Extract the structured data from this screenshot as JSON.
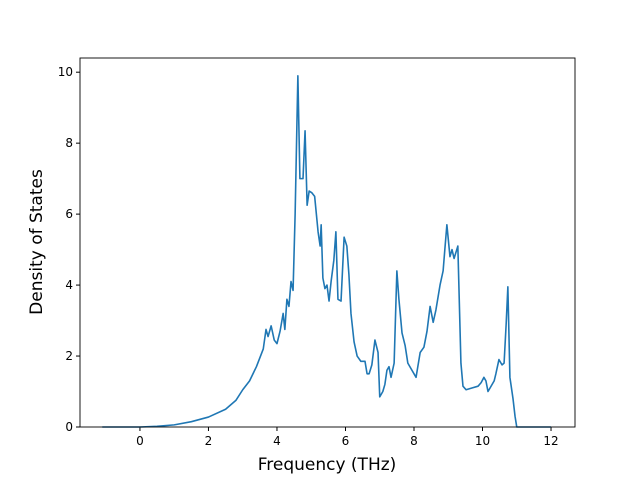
{
  "chart_data": {
    "type": "line",
    "x_label": "Frequency (THz)",
    "y_label": "Density of States",
    "xlim": [
      -1.75,
      12.7
    ],
    "ylim": [
      0,
      10.4
    ],
    "xticks": [
      0,
      2,
      4,
      6,
      8,
      10,
      12
    ],
    "yticks": [
      0,
      2,
      4,
      6,
      8,
      10
    ],
    "grid": false,
    "x": [
      -1.1,
      0,
      0.5,
      1,
      1.5,
      2,
      2.5,
      2.8,
      3.0,
      3.2,
      3.4,
      3.6,
      3.68,
      3.74,
      3.83,
      3.92,
      4.0,
      4.09,
      4.18,
      4.23,
      4.29,
      4.35,
      4.41,
      4.47,
      4.53,
      4.61,
      4.67,
      4.76,
      4.82,
      4.88,
      4.94,
      5.02,
      5.1,
      5.2,
      5.26,
      5.29,
      5.34,
      5.4,
      5.46,
      5.52,
      5.58,
      5.66,
      5.72,
      5.78,
      5.87,
      5.96,
      6.04,
      6.1,
      6.16,
      6.25,
      6.34,
      6.45,
      6.57,
      6.63,
      6.69,
      6.77,
      6.86,
      6.95,
      7.0,
      7.09,
      7.15,
      7.21,
      7.27,
      7.33,
      7.42,
      7.5,
      7.56,
      7.65,
      7.74,
      7.82,
      7.94,
      8.06,
      8.18,
      8.29,
      8.38,
      8.47,
      8.56,
      8.64,
      8.76,
      8.85,
      8.9,
      8.96,
      9.05,
      9.11,
      9.17,
      9.28,
      9.37,
      9.43,
      9.52,
      9.69,
      9.87,
      9.96,
      10.04,
      10.1,
      10.16,
      10.22,
      10.34,
      10.39,
      10.48,
      10.57,
      10.63,
      10.69,
      10.74,
      10.8,
      10.89,
      10.95,
      11.0,
      12.0
    ],
    "series": [
      {
        "color": "#1f77b4",
        "values": [
          0,
          0,
          0.02,
          0.06,
          0.15,
          0.28,
          0.5,
          0.75,
          1.05,
          1.3,
          1.7,
          2.2,
          2.75,
          2.55,
          2.85,
          2.45,
          2.35,
          2.7,
          3.2,
          2.75,
          3.6,
          3.4,
          4.1,
          3.85,
          6.0,
          9.9,
          7.0,
          7.0,
          8.35,
          6.25,
          6.65,
          6.6,
          6.5,
          5.5,
          5.1,
          5.7,
          4.2,
          3.9,
          4.0,
          3.55,
          4.1,
          4.7,
          5.5,
          3.6,
          3.55,
          5.35,
          5.1,
          4.3,
          3.2,
          2.4,
          2.0,
          1.85,
          1.85,
          1.5,
          1.5,
          1.75,
          2.45,
          2.1,
          0.85,
          1.0,
          1.2,
          1.6,
          1.7,
          1.4,
          1.8,
          4.4,
          3.6,
          2.65,
          2.3,
          1.8,
          1.6,
          1.4,
          2.1,
          2.25,
          2.7,
          3.4,
          2.95,
          3.3,
          4.0,
          4.4,
          5.0,
          5.7,
          4.8,
          5.0,
          4.75,
          5.1,
          1.8,
          1.15,
          1.05,
          1.1,
          1.15,
          1.25,
          1.4,
          1.3,
          1.0,
          1.1,
          1.3,
          1.5,
          1.9,
          1.75,
          1.8,
          2.9,
          3.95,
          1.4,
          0.8,
          0.3,
          0,
          0
        ]
      }
    ]
  }
}
